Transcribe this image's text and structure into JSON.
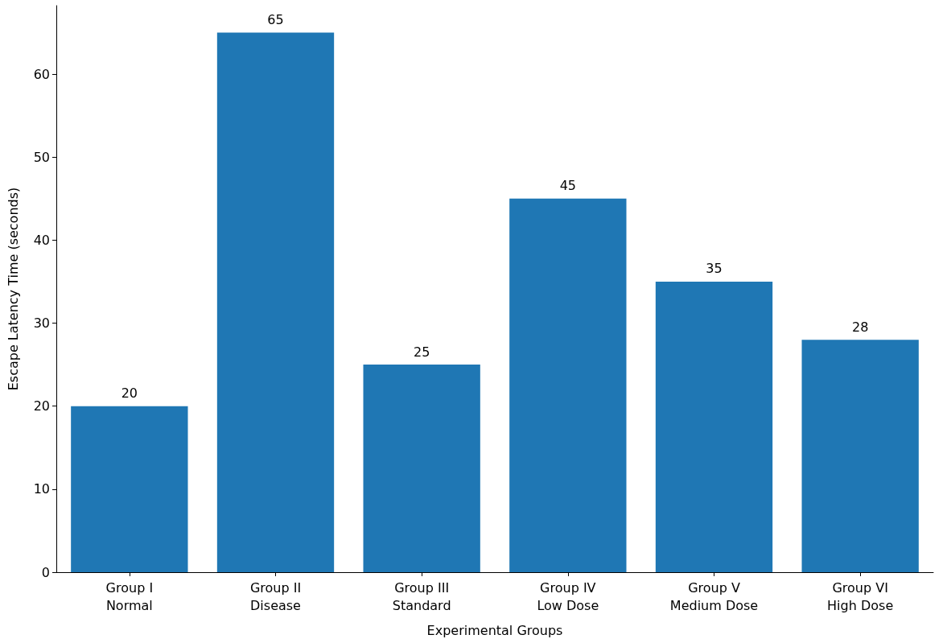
{
  "chart_data": {
    "type": "bar",
    "xlabel": "Experimental Groups",
    "ylabel": "Escape Latency Time (seconds)",
    "categories": [
      "Group I\nNormal",
      "Group II\nDisease",
      "Group III\nStandard",
      "Group IV\nLow Dose",
      "Group V\nMedium Dose",
      "Group VI\nHigh Dose"
    ],
    "values": [
      20,
      65,
      25,
      45,
      35,
      28
    ],
    "color": "#1f77b4",
    "ylim": [
      0,
      68.25
    ],
    "yticks": [
      0,
      10,
      20,
      30,
      40,
      50,
      60
    ],
    "data_labels": true,
    "grid": false
  }
}
